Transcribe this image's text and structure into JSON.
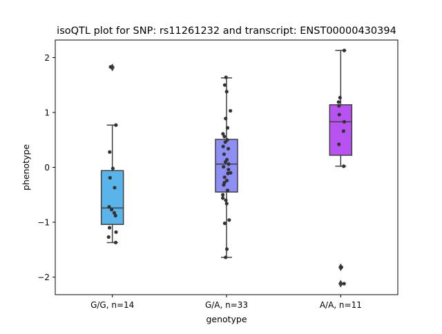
{
  "chart_data": {
    "type": "box",
    "title": "isoQTL plot for SNP: rs11261232 and transcript: ENST00000430394",
    "xlabel": "genotype",
    "ylabel": "phenotype",
    "ylim": [
      -2.32,
      2.32
    ],
    "yticks": [
      -2,
      -1,
      0,
      1,
      2
    ],
    "ytick_labels": [
      "−2",
      "−1",
      "0",
      "1",
      "2"
    ],
    "grid": false,
    "categories": [
      "G/G, n=14",
      "G/A, n=33",
      "A/A, n=11"
    ],
    "colors": [
      "#5ab4ea",
      "#8e8ef5",
      "#b852f0"
    ],
    "boxes": [
      {
        "q1": -1.04,
        "median": -0.74,
        "q3": -0.06,
        "whisker_low": -1.37,
        "whisker_high": 0.77,
        "outliers": [
          1.82
        ]
      },
      {
        "q1": -0.45,
        "median": 0.06,
        "q3": 0.51,
        "whisker_low": -1.64,
        "whisker_high": 1.63,
        "outliers": []
      },
      {
        "q1": 0.22,
        "median": 0.83,
        "q3": 1.14,
        "whisker_low": 0.02,
        "whisker_high": 2.13,
        "outliers": [
          -1.82,
          -2.12
        ]
      }
    ],
    "points": [
      [
        [
          -0.1,
          1.83
        ],
        [
          0.2,
          0.77
        ],
        [
          -0.15,
          0.28
        ],
        [
          0.03,
          -0.02
        ],
        [
          -0.13,
          -0.19
        ],
        [
          0.13,
          -0.37
        ],
        [
          -0.18,
          -0.72
        ],
        [
          -0.04,
          -0.77
        ],
        [
          0.11,
          -0.83
        ],
        [
          0.18,
          -0.88
        ],
        [
          -0.16,
          -1.1
        ],
        [
          0.21,
          -1.18
        ],
        [
          -0.21,
          -1.27
        ],
        [
          0.19,
          -1.37
        ]
      ],
      [
        [
          -0.03,
          1.64
        ],
        [
          -0.1,
          1.5
        ],
        [
          0.01,
          1.38
        ],
        [
          0.22,
          1.03
        ],
        [
          -0.05,
          0.89
        ],
        [
          0.06,
          0.72
        ],
        [
          -0.2,
          0.61
        ],
        [
          -0.12,
          0.56
        ],
        [
          0.04,
          0.5
        ],
        [
          -0.07,
          0.46
        ],
        [
          -0.19,
          0.38
        ],
        [
          0.1,
          0.34
        ],
        [
          -0.14,
          0.24
        ],
        [
          0.02,
          0.14
        ],
        [
          -0.06,
          0.1
        ],
        [
          0.12,
          0.06
        ],
        [
          -0.17,
          0.01
        ],
        [
          0.11,
          -0.04
        ],
        [
          0.23,
          -0.1
        ],
        [
          0.08,
          -0.11
        ],
        [
          -0.11,
          -0.18
        ],
        [
          0.02,
          -0.24
        ],
        [
          -0.12,
          -0.28
        ],
        [
          -0.16,
          -0.32
        ],
        [
          0.06,
          -0.42
        ],
        [
          -0.21,
          -0.5
        ],
        [
          -0.21,
          -0.56
        ],
        [
          -0.04,
          -0.6
        ],
        [
          0.01,
          -0.66
        ],
        [
          0.15,
          -0.96
        ],
        [
          -0.1,
          -1.02
        ],
        [
          0.02,
          -1.49
        ],
        [
          -0.05,
          -1.64
        ]
      ],
      [
        [
          0.2,
          2.13
        ],
        [
          -0.04,
          1.27
        ],
        [
          -0.12,
          1.19
        ],
        [
          -0.1,
          1.12
        ],
        [
          -0.08,
          0.96
        ],
        [
          0.2,
          0.83
        ],
        [
          0.16,
          0.66
        ],
        [
          -0.1,
          0.42
        ],
        [
          0.17,
          0.02
        ],
        [
          0.04,
          -1.82
        ],
        [
          0.19,
          -2.12
        ]
      ]
    ]
  }
}
